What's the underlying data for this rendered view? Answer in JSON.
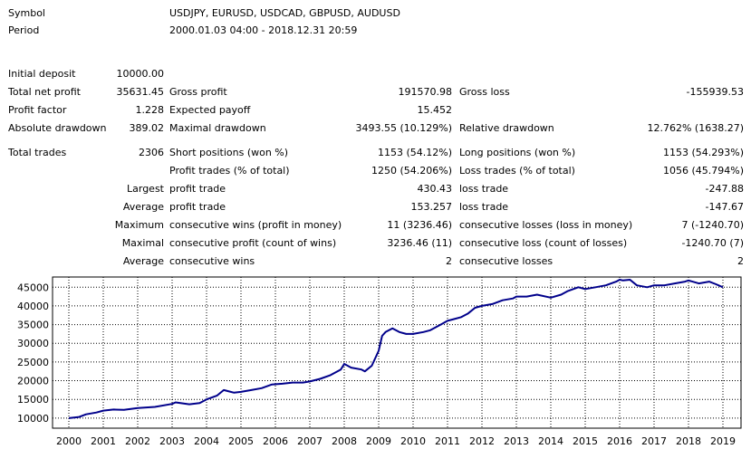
{
  "header": {
    "symbol_label": "Symbol",
    "symbol_value": "USDJPY, EURUSD, USDCAD, GBPUSD, AUDUSD",
    "period_label": "Period",
    "period_value": "2000.01.03 04:00 - 2018.12.31 20:59"
  },
  "summary": {
    "initial_deposit_label": "Initial deposit",
    "initial_deposit": "10000.00",
    "total_net_profit_label": "Total net profit",
    "total_net_profit": "35631.45",
    "gross_profit_label": "Gross profit",
    "gross_profit": "191570.98",
    "gross_loss_label": "Gross loss",
    "gross_loss": "-155939.53",
    "profit_factor_label": "Profit factor",
    "profit_factor": "1.228",
    "expected_payoff_label": "Expected payoff",
    "expected_payoff": "15.452",
    "absolute_drawdown_label": "Absolute drawdown",
    "absolute_drawdown": "389.02",
    "maximal_drawdown_label": "Maximal drawdown",
    "maximal_drawdown": "3493.55 (10.129%)",
    "relative_drawdown_label": "Relative drawdown",
    "relative_drawdown": "12.762% (1638.27)"
  },
  "trades": {
    "total_trades_label": "Total trades",
    "total_trades": "2306",
    "short_positions_label": "Short positions (won %)",
    "short_positions": "1153 (54.12%)",
    "long_positions_label": "Long positions (won %)",
    "long_positions": "1153 (54.293%)",
    "profit_trades_label": "Profit trades (% of total)",
    "profit_trades": "1250 (54.206%)",
    "loss_trades_label": "Loss trades (% of total)",
    "loss_trades": "1056 (45.794%)",
    "largest_label": "Largest",
    "largest_profit_label": "profit trade",
    "largest_profit": "430.43",
    "largest_loss_label": "loss trade",
    "largest_loss": "-247.88",
    "average_label": "Average",
    "average_profit_label": "profit trade",
    "average_profit": "153.257",
    "average_loss_label": "loss trade",
    "average_loss": "-147.67",
    "maximum_label": "Maximum",
    "max_consec_wins_label": "consecutive wins (profit in money)",
    "max_consec_wins": "11 (3236.46)",
    "max_consec_losses_label": "consecutive losses (loss in money)",
    "max_consec_losses": "7 (-1240.70)",
    "maximal_label": "Maximal",
    "maximal_consec_profit_label": "consecutive profit (count of wins)",
    "maximal_consec_profit": "3236.46 (11)",
    "maximal_consec_loss_label": "consecutive loss (count of losses)",
    "maximal_consec_loss": "-1240.70 (7)",
    "average2_label": "Average",
    "avg_consec_wins_label": "consecutive wins",
    "avg_consec_wins": "2",
    "avg_consec_losses_label": "consecutive losses",
    "avg_consec_losses": "2"
  },
  "chart_data": {
    "type": "line",
    "title": "",
    "xlabel": "",
    "ylabel": "",
    "grid": true,
    "line_color": "#00008b",
    "xlim": [
      2000,
      2019
    ],
    "ylim": [
      9000,
      47000
    ],
    "x_ticks": [
      "2000",
      "2001",
      "2002",
      "2003",
      "2004",
      "2005",
      "2006",
      "2007",
      "2008",
      "2009",
      "2010",
      "2011",
      "2012",
      "2013",
      "2014",
      "2015",
      "2016",
      "2017",
      "2018",
      "2019"
    ],
    "y_ticks": [
      10000,
      15000,
      20000,
      25000,
      30000,
      35000,
      40000,
      45000
    ],
    "series": [
      {
        "x": [
          2000.0,
          2000.3,
          2000.5,
          2000.8,
          2001.0,
          2001.3,
          2001.6,
          2002.0,
          2002.5,
          2003.0,
          2003.1,
          2003.5,
          2003.8,
          2004.0,
          2004.3,
          2004.5,
          2004.8,
          2005.0,
          2005.3,
          2005.6,
          2005.9,
          2006.2,
          2006.5,
          2006.8,
          2007.0,
          2007.3,
          2007.6,
          2007.9,
          2008.0,
          2008.2,
          2008.5,
          2008.6,
          2008.8,
          2009.0,
          2009.1,
          2009.2,
          2009.4,
          2009.6,
          2009.8,
          2010.0,
          2010.3,
          2010.5,
          2010.8,
          2011.0,
          2011.2,
          2011.4,
          2011.6,
          2011.8,
          2012.0,
          2012.3,
          2012.6,
          2012.9,
          2013.0,
          2013.3,
          2013.6,
          2014.0,
          2014.3,
          2014.5,
          2014.8,
          2015.0,
          2015.3,
          2015.6,
          2015.9,
          2016.0,
          2016.1,
          2016.3,
          2016.5,
          2016.8,
          2017.0,
          2017.3,
          2017.6,
          2017.9,
          2018.0,
          2018.3,
          2018.6,
          2018.8,
          2019.0
        ],
        "y": [
          10000,
          10300,
          11000,
          11500,
          12000,
          12300,
          12200,
          12700,
          13000,
          13800,
          14200,
          13700,
          14000,
          15000,
          16000,
          17500,
          16800,
          17000,
          17500,
          18000,
          19000,
          19200,
          19500,
          19500,
          19800,
          20500,
          21500,
          23000,
          24500,
          23500,
          23000,
          22500,
          24000,
          28000,
          32000,
          33000,
          34000,
          33000,
          32500,
          32500,
          33000,
          33500,
          35000,
          36000,
          36500,
          37000,
          38000,
          39500,
          40000,
          40500,
          41500,
          42000,
          42500,
          42500,
          43000,
          42200,
          43000,
          44000,
          45000,
          44500,
          45000,
          45500,
          46500,
          47000,
          46800,
          47000,
          45500,
          45000,
          45500,
          45500,
          46000,
          46500,
          46800,
          46000,
          46500,
          45800,
          45000
        ]
      }
    ]
  }
}
